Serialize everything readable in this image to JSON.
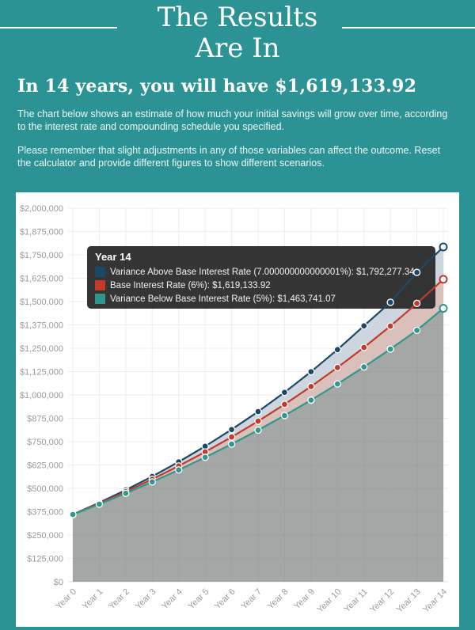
{
  "header": {
    "title_line1": "The Results",
    "title_line2": "Are In",
    "headline": "In 14 years, you will have $1,619,133.92"
  },
  "intro": {
    "paragraph1": "The chart below shows an estimate of how much your initial savings will grow over time, according to the interest rate and compounding schedule you specified.",
    "paragraph2": "Please remember that slight adjustments in any of those variables can affect the outcome. Reset the calculator and provide different figures to show different scenarios."
  },
  "theme": {
    "page_background": "#2b9394",
    "card_background": "#ffffff",
    "heading_text": "#ffffff",
    "body_text": "#eef9f8",
    "axis_label": "#9b9b9b",
    "gridline": "#f1edec",
    "baseline": "#e2dedd",
    "tooltip_background": "rgba(42,42,42,0.95)"
  },
  "chart_data": {
    "type": "line",
    "x_labels": [
      "Year 0",
      "Year 1",
      "Year 2",
      "Year 3",
      "Year 4",
      "Year 5",
      "Year 6",
      "Year 7",
      "Year 8",
      "Year 9",
      "Year 10",
      "Year 11",
      "Year 12",
      "Year 13",
      "Year 14"
    ],
    "ylim": [
      0,
      2000000
    ],
    "ytick_step": 125000,
    "ytick_labels": [
      "$0",
      "$125,000",
      "$250,000",
      "$375,000",
      "$500,000",
      "$625,000",
      "$750,000",
      "$875,000",
      "$1,000,000",
      "$1,125,000",
      "$1,250,000",
      "$1,375,000",
      "$1,500,000",
      "$1,625,000",
      "$1,750,000",
      "$1,875,000",
      "$2,000,000"
    ],
    "grid": true,
    "series": [
      {
        "name": "Variance Above Base Interest Rate (7.000000000000001%)",
        "color": "#1c4867",
        "band_fill": "#cdd5df",
        "values": [
          360000,
          423209,
          490975,
          563651,
          641581,
          725137,
          814736,
          910808,
          1013835,
          1124295,
          1242750,
          1369766,
          1496000,
          1656000,
          1792277.34
        ]
      },
      {
        "name": "Base Interest Rate (6%)",
        "color": "#c23b2a",
        "band_fill": "#d9c0bb",
        "values": [
          360000,
          419211,
          482073,
          548813,
          619670,
          694896,
          774763,
          859555,
          949577,
          1045152,
          1146621,
          1254341,
          1368721,
          1490135,
          1619133.92
        ]
      },
      {
        "name": "Variance Below Base Interest Rate (5%)",
        "color": "#2f978d",
        "band_fill": "rgba(128,133,132,0.72)",
        "values": [
          360000,
          415255,
          473337,
          534390,
          598567,
          666028,
          736939,
          811479,
          889832,
          972195,
          1058772,
          1149779,
          1245442,
          1345964,
          1463741.07
        ]
      }
    ],
    "tooltip": {
      "title": "Year 14",
      "rows": [
        {
          "text": "Variance Above Base Interest Rate (7.000000000000001%): $1,792,277.34"
        },
        {
          "text": "Base Interest Rate (6%): $1,619,133.92"
        },
        {
          "text": "Variance Below Base Interest Rate (5%): $1,463,741.07"
        }
      ]
    }
  }
}
